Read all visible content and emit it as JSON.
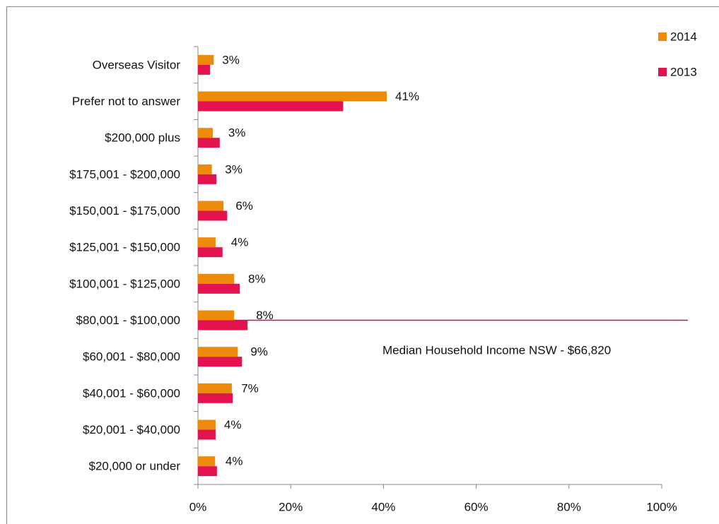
{
  "chart_data": {
    "type": "hbar",
    "categories": [
      "Overseas Visitor",
      "Prefer not to answer",
      "$200,000 plus",
      "$175,001 - $200,000",
      "$150,001 - $175,000",
      "$125,001 - $150,000",
      "$100,001 - $125,000",
      "$80,001 - $100,000",
      "$60,001 - $80,000",
      "$40,001 - $60,000",
      "$20,001 - $40,000",
      "$20,000 or under"
    ],
    "series": [
      {
        "name": "2014",
        "color": "#ee8a0a",
        "values": [
          3.4,
          40.7,
          3.2,
          3.0,
          5.5,
          3.8,
          7.8,
          7.8,
          8.6,
          7.3,
          3.8,
          3.7
        ],
        "value_labels": [
          "3%",
          "41%",
          "3%",
          "3%",
          "6%",
          "4%",
          "8%",
          "8%",
          "9%",
          "7%",
          "4%",
          "4%"
        ]
      },
      {
        "name": "2013",
        "color": "#e2134f",
        "values": [
          2.6,
          31.3,
          4.7,
          4.0,
          6.3,
          5.3,
          9.0,
          10.7,
          9.5,
          7.5,
          3.8,
          4.1
        ]
      }
    ],
    "xlim": [
      0,
      100
    ],
    "xticks": [
      {
        "value": 0,
        "label": "0%"
      },
      {
        "value": 20,
        "label": "20%"
      },
      {
        "value": 40,
        "label": "40%"
      },
      {
        "value": 60,
        "label": "60%"
      },
      {
        "value": 80,
        "label": "80%"
      },
      {
        "value": 100,
        "label": "100%"
      }
    ],
    "annotation": "Median Household Income NSW - $66,820",
    "grid": false,
    "legend": "top-right"
  }
}
